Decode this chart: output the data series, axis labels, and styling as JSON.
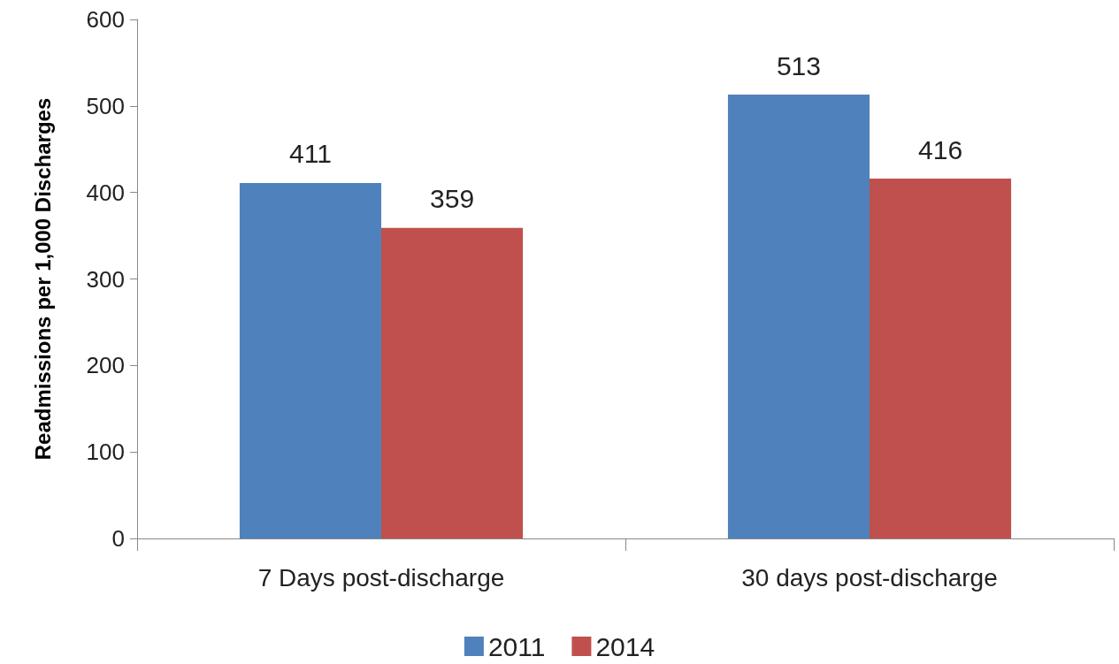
{
  "chart_data": {
    "type": "bar",
    "ylabel": "Readmissions per 1,000 Discharges",
    "categories": [
      "7 Days post-discharge",
      "30 days post-discharge"
    ],
    "series": [
      {
        "name": "2011",
        "color": "#4f81bd",
        "values": [
          411,
          513
        ]
      },
      {
        "name": "2014",
        "color": "#c0504d",
        "values": [
          359,
          416
        ]
      }
    ],
    "ylim": [
      0,
      600
    ],
    "yticks": [
      0,
      100,
      200,
      300,
      400,
      500,
      600
    ],
    "grid": false,
    "legend": "bottom",
    "data_labels": true
  }
}
